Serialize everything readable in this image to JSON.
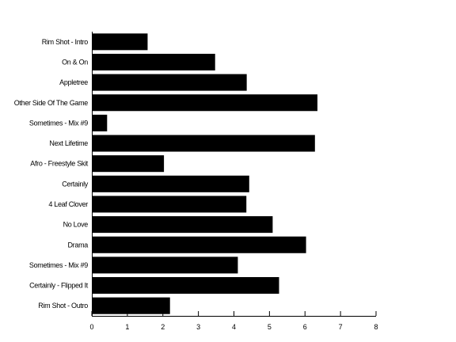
{
  "chart_data": {
    "type": "bar",
    "orientation": "horizontal",
    "title": "",
    "xlabel": "",
    "ylabel": "",
    "categories": [
      "Rim Shot - Intro",
      "On & On",
      "Appletree",
      "Other Side Of The Game",
      "Sometimes - Mix #9",
      "Next Lifetime",
      "Afro - Freestyle Skit",
      "Certainly",
      "4 Leaf Clover",
      "No Love",
      "Drama",
      "Sometimes - Mix #9",
      "Certainly - Flipped It",
      "Rim Shot - Outro"
    ],
    "values": [
      1.57,
      3.47,
      4.36,
      6.35,
      0.43,
      6.28,
      2.03,
      4.43,
      4.35,
      5.09,
      6.03,
      4.11,
      5.27,
      2.2
    ],
    "xlim": [
      0,
      8
    ],
    "xticks": [
      0,
      1,
      2,
      3,
      4,
      5,
      6,
      7,
      8
    ],
    "grid": false,
    "bar_color": "#000000",
    "legend": "none"
  }
}
